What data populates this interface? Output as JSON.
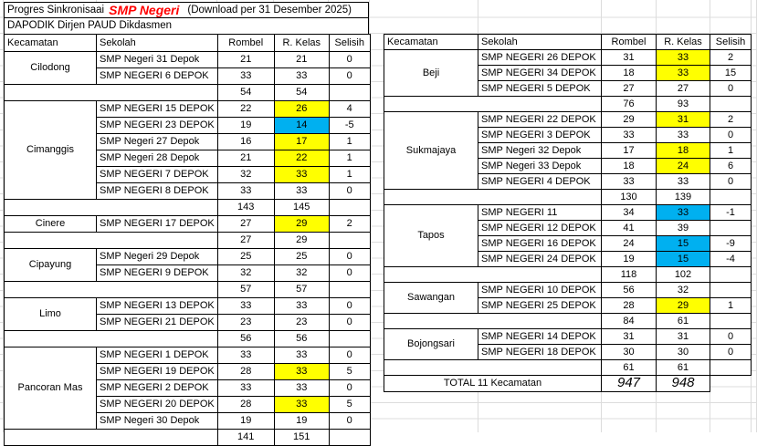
{
  "title": {
    "prefix": "Progres Sinkronisaai",
    "highlight": "SMP Negeri",
    "suffix": "(Download per 31 Desember 2025)",
    "highlight_color": "#FF0000"
  },
  "subtitle": "DAPODIK Dirjen PAUD Dikdasmen",
  "columns": [
    "Kecamatan",
    "Sekolah",
    "Rombel",
    "R. Kelas",
    "Selisih"
  ],
  "highlight_colors": {
    "yellow": "#FFFF00",
    "blue": "#00B0F0"
  },
  "left_table": {
    "groups": [
      {
        "kecamatan": "Cilodong",
        "schools": [
          {
            "name": "SMP Negeri 31 Depok",
            "rombel": "21",
            "rkelas": "21",
            "selisih": "0",
            "hl": null
          },
          {
            "name": "SMP NEGERI 6 DEPOK",
            "rombel": "33",
            "rkelas": "33",
            "selisih": "0",
            "hl": null
          }
        ],
        "subtotal": {
          "rombel": "54",
          "rkelas": "54"
        }
      },
      {
        "kecamatan": "Cimanggis",
        "schools": [
          {
            "name": "SMP NEGERI 15 DEPOK",
            "rombel": "22",
            "rkelas": "26",
            "selisih": "4",
            "hl": "yellow"
          },
          {
            "name": "SMP NEGERI 23 DEPOK",
            "rombel": "19",
            "rkelas": "14",
            "selisih": "-5",
            "hl": "blue"
          },
          {
            "name": "SMP Negeri 27 Depok",
            "rombel": "16",
            "rkelas": "17",
            "selisih": "1",
            "hl": "yellow"
          },
          {
            "name": "SMP Negeri 28 Depok",
            "rombel": "21",
            "rkelas": "22",
            "selisih": "1",
            "hl": "yellow"
          },
          {
            "name": "SMP NEGERI 7 DEPOK",
            "rombel": "32",
            "rkelas": "33",
            "selisih": "1",
            "hl": "yellow"
          },
          {
            "name": "SMP NEGERI 8 DEPOK",
            "rombel": "33",
            "rkelas": "33",
            "selisih": "0",
            "hl": null
          }
        ],
        "subtotal": {
          "rombel": "143",
          "rkelas": "145"
        }
      },
      {
        "kecamatan": "Cinere",
        "schools": [
          {
            "name": "SMP NEGERI 17 DEPOK",
            "rombel": "27",
            "rkelas": "29",
            "selisih": "2",
            "hl": "yellow"
          }
        ],
        "subtotal": {
          "rombel": "27",
          "rkelas": "29"
        }
      },
      {
        "kecamatan": "Cipayung",
        "schools": [
          {
            "name": "SMP Negeri 29 Depok",
            "rombel": "25",
            "rkelas": "25",
            "selisih": "0",
            "hl": null
          },
          {
            "name": "SMP NEGERI 9 DEPOK",
            "rombel": "32",
            "rkelas": "32",
            "selisih": "0",
            "hl": null
          }
        ],
        "subtotal": {
          "rombel": "57",
          "rkelas": "57"
        }
      },
      {
        "kecamatan": "Limo",
        "schools": [
          {
            "name": "SMP NEGERI 13 DEPOK",
            "rombel": "33",
            "rkelas": "33",
            "selisih": "0",
            "hl": null
          },
          {
            "name": "SMP NEGERI 21 DEPOK",
            "rombel": "23",
            "rkelas": "23",
            "selisih": "0",
            "hl": null
          }
        ],
        "subtotal": {
          "rombel": "56",
          "rkelas": "56"
        }
      },
      {
        "kecamatan": "Pancoran Mas",
        "schools": [
          {
            "name": "SMP NEGERI 1 DEPOK",
            "rombel": "33",
            "rkelas": "33",
            "selisih": "0",
            "hl": null
          },
          {
            "name": "SMP NEGERI 19 DEPOK",
            "rombel": "28",
            "rkelas": "33",
            "selisih": "5",
            "hl": "yellow"
          },
          {
            "name": "SMP NEGERI 2 DEPOK",
            "rombel": "33",
            "rkelas": "33",
            "selisih": "0",
            "hl": null
          },
          {
            "name": "SMP NEGERI 20 DEPOK",
            "rombel": "28",
            "rkelas": "33",
            "selisih": "5",
            "hl": "yellow"
          },
          {
            "name": "SMP Negeri 30 Depok",
            "rombel": "19",
            "rkelas": "19",
            "selisih": "0",
            "hl": null
          }
        ],
        "subtotal": {
          "rombel": "141",
          "rkelas": "151"
        }
      }
    ]
  },
  "right_table": {
    "groups": [
      {
        "kecamatan": "Beji",
        "schools": [
          {
            "name": "SMP NEGERI 26 DEPOK",
            "rombel": "31",
            "rkelas": "33",
            "selisih": "2",
            "hl": "yellow"
          },
          {
            "name": "SMP NEGERI 34 DEPOK",
            "rombel": "18",
            "rkelas": "33",
            "selisih": "15",
            "hl": "yellow"
          },
          {
            "name": "SMP NEGERI 5 DEPOK",
            "rombel": "27",
            "rkelas": "27",
            "selisih": "0",
            "hl": null
          }
        ],
        "subtotal": {
          "rombel": "76",
          "rkelas": "93"
        }
      },
      {
        "kecamatan": "Sukmajaya",
        "schools": [
          {
            "name": "SMP NEGERI 22 DEPOK",
            "rombel": "29",
            "rkelas": "31",
            "selisih": "2",
            "hl": "yellow"
          },
          {
            "name": "SMP NEGERI 3 DEPOK",
            "rombel": "33",
            "rkelas": "33",
            "selisih": "0",
            "hl": null
          },
          {
            "name": "SMP Negeri 32 Depok",
            "rombel": "17",
            "rkelas": "18",
            "selisih": "1",
            "hl": "yellow"
          },
          {
            "name": "SMP Negeri 33 Depok",
            "rombel": "18",
            "rkelas": "24",
            "selisih": "6",
            "hl": "yellow"
          },
          {
            "name": "SMP NEGERI 4 DEPOK",
            "rombel": "33",
            "rkelas": "33",
            "selisih": "0",
            "hl": null
          }
        ],
        "subtotal": {
          "rombel": "130",
          "rkelas": "139"
        }
      },
      {
        "kecamatan": "Tapos",
        "schools": [
          {
            "name": "SMP NEGERI 11",
            "rombel": "34",
            "rkelas": "33",
            "selisih": "-1",
            "hl": "blue"
          },
          {
            "name": "SMP NEGERI 12 DEPOK",
            "rombel": "41",
            "rkelas": "39",
            "selisih": "",
            "hl": null
          },
          {
            "name": "SMP NEGERI 16 DEPOK",
            "rombel": "24",
            "rkelas": "15",
            "selisih": "-9",
            "hl": "blue"
          },
          {
            "name": "SMP NEGERI 24 DEPOK",
            "rombel": "19",
            "rkelas": "15",
            "selisih": "-4",
            "hl": "blue"
          }
        ],
        "subtotal": {
          "rombel": "118",
          "rkelas": "102"
        }
      },
      {
        "kecamatan": "Sawangan",
        "schools": [
          {
            "name": "SMP NEGERI 10 DEPOK",
            "rombel": "56",
            "rkelas": "32",
            "selisih": "",
            "hl": null
          },
          {
            "name": "SMP NEGERI 25 DEPOK",
            "rombel": "28",
            "rkelas": "29",
            "selisih": "1",
            "hl": "yellow"
          }
        ],
        "subtotal": {
          "rombel": "84",
          "rkelas": "61"
        }
      },
      {
        "kecamatan": "Bojongsari",
        "schools": [
          {
            "name": "SMP NEGERI 14 DEPOK",
            "rombel": "31",
            "rkelas": "31",
            "selisih": "0",
            "hl": null
          },
          {
            "name": "SMP NEGERI 18 DEPOK",
            "rombel": "30",
            "rkelas": "30",
            "selisih": "0",
            "hl": null
          }
        ],
        "subtotal": {
          "rombel": "61",
          "rkelas": "61"
        }
      }
    ],
    "total": {
      "label": "TOTAL 11 Kecamatan",
      "rombel": "947",
      "rkelas": "948"
    }
  }
}
